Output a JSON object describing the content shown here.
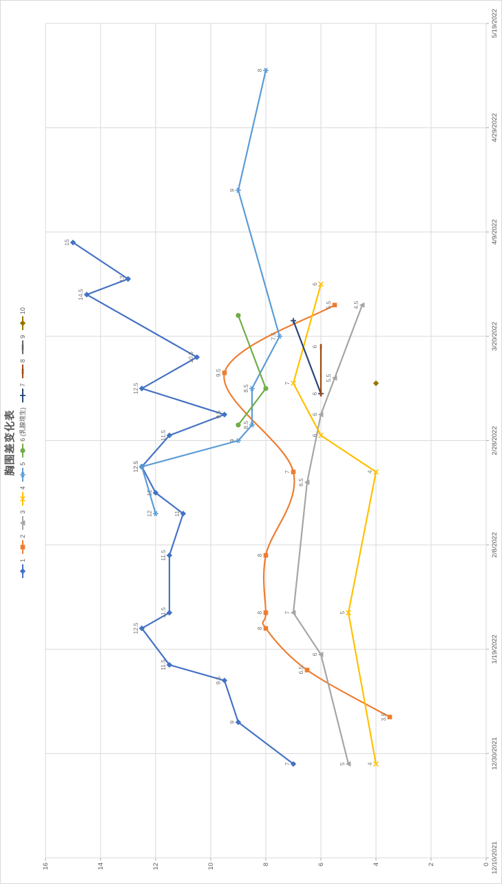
{
  "chart_data": {
    "type": "line",
    "title": "胸围差变化表",
    "title_color": "#595959",
    "grid": true,
    "grid_color": "#d9d9d9",
    "tick_color": "#a6a6a6",
    "axis_text_color": "#595959",
    "data_label_color": "#737373",
    "legend_position": "top",
    "x_axis": {
      "min": "12/10/2021",
      "max": "5/19/2022",
      "ticks": [
        "12/10/2021",
        "12/30/2021",
        "1/19/2022",
        "2/8/2022",
        "2/28/2022",
        "3/20/2022",
        "4/9/2022",
        "4/29/2022",
        "5/19/2022"
      ]
    },
    "y_axis": {
      "min": 0,
      "max": 16,
      "step": 2,
      "tick_labels": [
        "0",
        "2",
        "4",
        "6",
        "8",
        "10",
        "12",
        "14",
        "16"
      ]
    },
    "series": [
      {
        "name": "1",
        "color": "#4472C4",
        "marker": "diamond",
        "smooth": false,
        "show_labels": true,
        "points": [
          {
            "date": "12/28/2021",
            "value": 7
          },
          {
            "date": "1/5/2022",
            "value": 9
          },
          {
            "date": "1/13/2022",
            "value": 9.5
          },
          {
            "date": "1/16/2022",
            "value": 11.5
          },
          {
            "date": "1/23/2022",
            "value": 12.5
          },
          {
            "date": "1/26/2022",
            "value": 11.5
          },
          {
            "date": "2/6/2022",
            "value": 11.5
          },
          {
            "date": "2/14/2022",
            "value": 11
          },
          {
            "date": "2/18/2022",
            "value": 12
          },
          {
            "date": "2/23/2022",
            "value": 12.5
          },
          {
            "date": "3/1/2022",
            "value": 11.5
          },
          {
            "date": "3/5/2022",
            "value": 9.5
          },
          {
            "date": "3/10/2022",
            "value": 12.5
          },
          {
            "date": "3/16/2022",
            "value": 10.5
          },
          {
            "date": "3/28/2022",
            "value": 14.5
          },
          {
            "date": "3/31/2022",
            "value": 13
          },
          {
            "date": "4/7/2022",
            "value": 15
          }
        ]
      },
      {
        "name": "2",
        "color": "#ED7D31",
        "marker": "square",
        "smooth": true,
        "show_labels": true,
        "points": [
          {
            "date": "1/6/2022",
            "value": 3.5
          },
          {
            "date": "1/15/2022",
            "value": 6.5
          },
          {
            "date": "1/23/2022",
            "value": 8
          },
          {
            "date": "1/26/2022",
            "value": 8
          },
          {
            "date": "2/6/2022",
            "value": 8
          },
          {
            "date": "2/22/2022",
            "value": 7
          },
          {
            "date": "3/13/2022",
            "value": 9.5
          },
          {
            "date": "3/26/2022",
            "value": 5.5
          }
        ]
      },
      {
        "name": "3",
        "color": "#A5A5A5",
        "marker": "triangle",
        "smooth": false,
        "show_labels": true,
        "points": [
          {
            "date": "12/28/2021",
            "value": 5
          },
          {
            "date": "1/18/2022",
            "value": 6
          },
          {
            "date": "1/26/2022",
            "value": 7
          },
          {
            "date": "2/20/2022",
            "value": 6.5
          },
          {
            "date": "3/5/2022",
            "value": 6
          },
          {
            "date": "3/12/2022",
            "value": 5.5
          },
          {
            "date": "3/26/2022",
            "value": 4.5
          }
        ]
      },
      {
        "name": "4",
        "color": "#FFC000",
        "marker": "x",
        "smooth": false,
        "show_labels": true,
        "points": [
          {
            "date": "12/28/2021",
            "value": 4
          },
          {
            "date": "1/26/2022",
            "value": 5
          },
          {
            "date": "2/22/2022",
            "value": 4
          },
          {
            "date": "3/1/2022",
            "value": 6
          },
          {
            "date": "3/11/2022",
            "value": 7
          },
          {
            "date": "3/30/2022",
            "value": 6
          }
        ]
      },
      {
        "name": "5",
        "color": "#5B9BD5",
        "marker": "asterisk",
        "smooth": false,
        "show_labels": true,
        "points": [
          {
            "date": "2/14/2022",
            "value": 12
          },
          {
            "date": "2/23/2022",
            "value": 12.5
          },
          {
            "date": "2/28/2022",
            "value": 9
          },
          {
            "date": "3/3/2022",
            "value": 8.5
          },
          {
            "date": "3/10/2022",
            "value": 8.5
          },
          {
            "date": "3/20/2022",
            "value": 7.5
          },
          {
            "date": "4/17/2022",
            "value": 9
          },
          {
            "date": "5/10/2022",
            "value": 8
          }
        ]
      },
      {
        "name": "6 (乳腺增生)",
        "color": "#70AD47",
        "marker": "circle",
        "smooth": false,
        "show_labels": false,
        "points": [
          {
            "date": "3/3/2022",
            "value": 9
          },
          {
            "date": "3/10/2022",
            "value": 8
          },
          {
            "date": "3/24/2022",
            "value": 9
          }
        ]
      },
      {
        "name": "7",
        "color": "#264478",
        "marker": "plus",
        "smooth": false,
        "show_labels": false,
        "points": [
          {
            "date": "3/9/2022",
            "value": 6
          },
          {
            "date": "3/23/2022",
            "value": 7
          }
        ]
      },
      {
        "name": "8",
        "color": "#9E480E",
        "marker": "dash",
        "smooth": false,
        "show_labels": true,
        "points": [
          {
            "date": "3/9/2022",
            "value": 6
          },
          {
            "date": "3/18/2022",
            "value": 6
          }
        ]
      },
      {
        "name": "9",
        "color": "#636363",
        "marker": "dash",
        "smooth": false,
        "show_labels": false,
        "points": []
      },
      {
        "name": "10",
        "color": "#997300",
        "marker": "diamond",
        "smooth": false,
        "show_labels": false,
        "points": [
          {
            "date": "3/11/2022",
            "value": 4
          }
        ]
      }
    ]
  }
}
